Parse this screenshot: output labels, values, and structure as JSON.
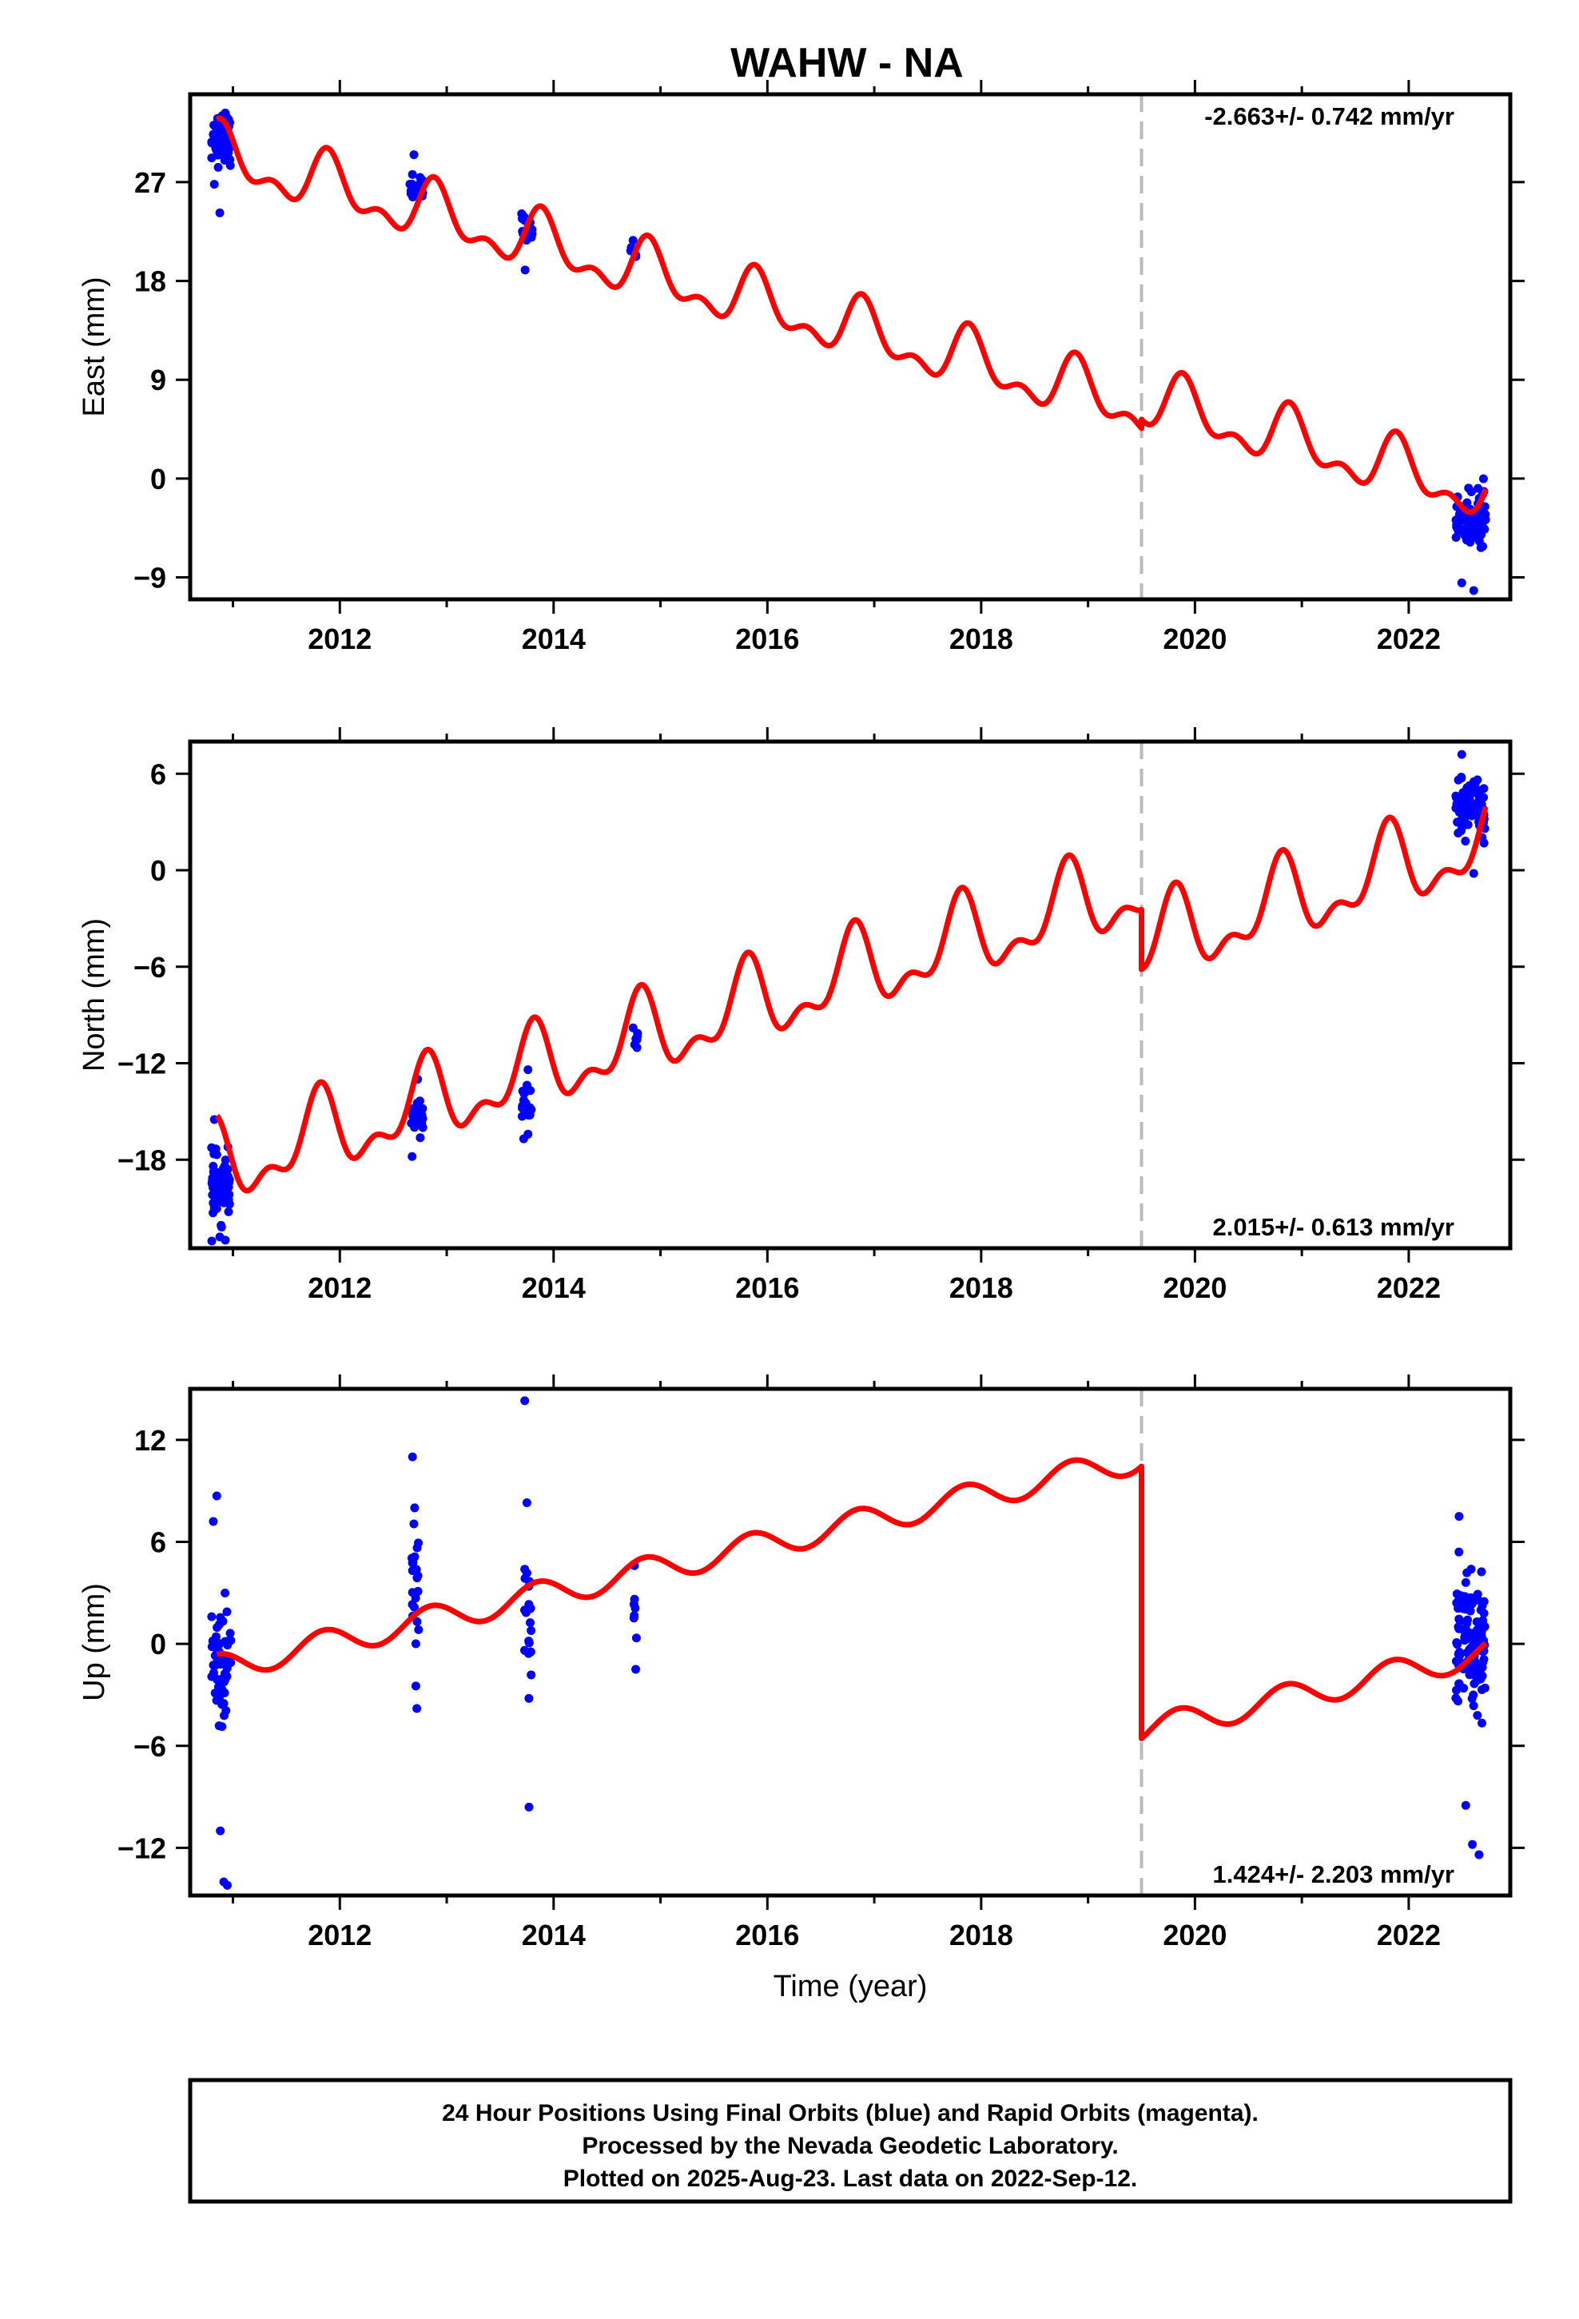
{
  "title": "WAHW - NA",
  "colors": {
    "final_orbits": "#0000ff",
    "model": "#ff0000",
    "break_line": "#bbbbbb",
    "frame": "#000000"
  },
  "chart_data": [
    {
      "type": "scatter",
      "name": "east",
      "ylabel": "East (mm)",
      "xlabel": "",
      "rate_label": "-2.663+/- 0.742 mm/yr",
      "rate_position": "top-right",
      "xlim": [
        2010.6,
        2022.95
      ],
      "ylim": [
        -11,
        35
      ],
      "xticks": [
        2012,
        2014,
        2016,
        2018,
        2020,
        2022
      ],
      "yticks": [
        -9,
        0,
        9,
        18,
        27
      ],
      "grid": false,
      "break_epoch": 2019.5,
      "model": {
        "slope": -2.663,
        "intercept": 29.0,
        "t0": 2011.0,
        "amp_annual": 2.2,
        "phase_annual": 0.35,
        "amp_semiannual": 1.3,
        "phase_semiannual": 0.5,
        "offset_at_break": 0.8
      },
      "clusters": [
        {
          "t_start": 2010.8,
          "t_end": 2010.98,
          "mean": 31.0,
          "spread": 2.0,
          "n": 80,
          "outliers": [
            26.8,
            24.2,
            33.3
          ]
        },
        {
          "t_start": 2012.65,
          "t_end": 2012.78,
          "mean": 26.6,
          "spread": 1.2,
          "n": 22,
          "outliers": [
            29.5
          ]
        },
        {
          "t_start": 2013.7,
          "t_end": 2013.8,
          "mean": 22.6,
          "spread": 1.3,
          "n": 20,
          "outliers": [
            19.0
          ]
        },
        {
          "t_start": 2014.72,
          "t_end": 2014.79,
          "mean": 20.5,
          "spread": 0.7,
          "n": 6,
          "outliers": [
            21.7
          ]
        },
        {
          "t_start": 2022.44,
          "t_end": 2022.72,
          "mean": -3.5,
          "spread": 2.2,
          "n": 90,
          "outliers": [
            -9.5,
            -10.2
          ]
        }
      ]
    },
    {
      "type": "scatter",
      "name": "north",
      "ylabel": "North (mm)",
      "xlabel": "",
      "rate_label": "2.015+/- 0.613 mm/yr",
      "rate_position": "bottom-right",
      "xlim": [
        2010.6,
        2022.95
      ],
      "ylim": [
        -23.5,
        8
      ],
      "xticks": [
        2012,
        2014,
        2016,
        2018,
        2020,
        2022
      ],
      "yticks": [
        -18,
        -12,
        -6,
        0,
        6
      ],
      "grid": false,
      "break_epoch": 2019.5,
      "model": {
        "slope": 2.015,
        "intercept": -18.2,
        "t0": 2011.0,
        "amp_annual": 2.2,
        "phase_annual": -0.55,
        "amp_semiannual": 1.2,
        "phase_semiannual": -0.4,
        "offset_at_break": -3.7
      },
      "clusters": [
        {
          "t_start": 2010.8,
          "t_end": 2010.98,
          "mean": -19.8,
          "spread": 1.7,
          "n": 80,
          "outliers": [
            -15.5,
            -22.8,
            -23.0
          ]
        },
        {
          "t_start": 2012.65,
          "t_end": 2012.78,
          "mean": -15.3,
          "spread": 1.0,
          "n": 22,
          "outliers": [
            -17.8,
            -13.0
          ]
        },
        {
          "t_start": 2013.7,
          "t_end": 2013.8,
          "mean": -14.5,
          "spread": 1.2,
          "n": 20,
          "outliers": [
            -16.7,
            -12.4
          ]
        },
        {
          "t_start": 2014.72,
          "t_end": 2014.79,
          "mean": -10.7,
          "spread": 0.7,
          "n": 6,
          "outliers": [
            -9.8
          ]
        },
        {
          "t_start": 2022.44,
          "t_end": 2022.72,
          "mean": 3.8,
          "spread": 1.5,
          "n": 90,
          "outliers": [
            7.2,
            -0.2
          ]
        }
      ]
    },
    {
      "type": "scatter",
      "name": "up",
      "ylabel": "Up (mm)",
      "xlabel": "Time (year)",
      "rate_label": "1.424+/- 2.203 mm/yr",
      "rate_position": "bottom-right",
      "xlim": [
        2010.6,
        2022.95
      ],
      "ylim": [
        -14.8,
        15
      ],
      "xticks": [
        2012,
        2014,
        2016,
        2018,
        2020,
        2022
      ],
      "yticks": [
        -12,
        -6,
        0,
        6,
        12
      ],
      "grid": false,
      "break_epoch": 2019.5,
      "model": {
        "slope": 1.424,
        "intercept": -1.2,
        "t0": 2011.0,
        "amp_annual": 0.8,
        "phase_annual": 0.4,
        "amp_semiannual": 0.0,
        "phase_semiannual": 0.0,
        "offset_at_break": -16.0
      },
      "clusters": [
        {
          "t_start": 2010.8,
          "t_end": 2010.98,
          "mean": -1.0,
          "spread": 3.8,
          "n": 65,
          "outliers": [
            7.2,
            8.7,
            -11.0,
            -14.0,
            -14.2
          ]
        },
        {
          "t_start": 2012.67,
          "t_end": 2012.74,
          "mean": 3.0,
          "spread": 3.5,
          "n": 22,
          "outliers": [
            11.0,
            8.0,
            -3.8
          ]
        },
        {
          "t_start": 2013.72,
          "t_end": 2013.79,
          "mean": 0.5,
          "spread": 4.5,
          "n": 20,
          "outliers": [
            14.3,
            8.3,
            -9.6
          ]
        },
        {
          "t_start": 2014.75,
          "t_end": 2014.78,
          "mean": 2.0,
          "spread": 2.5,
          "n": 6,
          "outliers": [
            4.6,
            -1.5
          ]
        },
        {
          "t_start": 2022.44,
          "t_end": 2022.72,
          "mean": 0.0,
          "spread": 3.2,
          "n": 140,
          "outliers": [
            7.5,
            -9.5,
            -11.8,
            -12.4
          ]
        }
      ]
    }
  ],
  "footer": {
    "line1": "24 Hour Positions Using Final Orbits (blue) and Rapid Orbits (magenta).",
    "line2": "Processed by the Nevada Geodetic Laboratory.",
    "line3": "Plotted on 2025-Aug-23. Last data on 2022-Sep-12."
  }
}
